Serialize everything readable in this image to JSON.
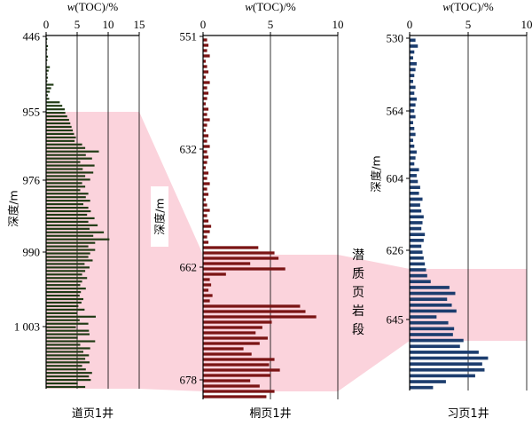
{
  "chart_data": [
    {
      "type": "bar",
      "orientation": "horizontal",
      "well_name": "道页1井",
      "xlabel_prefix": "w",
      "xlabel_suffix": "(TOC)/%",
      "ylabel": "深度/m",
      "x_ticks": [
        0,
        5,
        10,
        15
      ],
      "xlim": [
        0,
        15
      ],
      "y_ticks": [
        "446",
        "955",
        "976",
        "990",
        "1 003"
      ],
      "y_tick_values": [
        446,
        955,
        976,
        990,
        1003
      ],
      "bar_color": "#1f3a14",
      "series": [
        {
          "values": [
            0.2,
            0.1,
            0.3,
            0.2,
            0.1,
            0.3,
            0.2,
            0.1,
            0.6,
            0.4,
            0.2,
            0.3,
            0.2,
            1.2,
            0.8,
            0.6,
            0.3,
            0.5,
            2.2,
            2.6,
            3.0,
            3.1,
            3.4,
            3.7,
            3.9,
            4.1,
            4.3,
            4.5,
            4.8,
            4.6,
            5.8,
            6.3,
            8.5,
            6.4,
            7.4,
            5.5,
            7.8,
            5.9,
            7.6,
            6.3,
            7.1,
            5.8,
            6.3,
            5.5,
            6.8,
            6.4,
            7.1,
            6.0,
            6.8,
            7.2,
            6.6,
            7.8,
            6.8,
            8.3,
            7.0,
            9.3,
            7.6,
            10.2,
            7.9,
            6.8,
            7.9,
            7.1,
            6.8,
            7.5,
            6.2,
            7.0,
            6.3,
            5.8,
            6.6,
            5.8,
            5.5,
            6.4,
            5.6,
            5.4,
            6.0,
            5.7,
            5.2,
            6.2,
            5.0,
            8.0,
            5.4,
            6.8,
            4.8,
            6.9,
            7.0,
            5.1,
            7.9,
            5.5,
            7.1,
            6.0,
            6.9,
            6.3,
            7.0,
            5.8,
            6.4,
            7.4,
            6.9,
            7.2,
            5.1,
            6.3
          ]
        }
      ]
    },
    {
      "type": "bar",
      "orientation": "horizontal",
      "well_name": "桐页1井",
      "xlabel_prefix": "w",
      "xlabel_suffix": "(TOC)/%",
      "ylabel": "深度/m",
      "x_ticks": [
        0,
        5,
        10
      ],
      "xlim": [
        0,
        10
      ],
      "y_ticks": [
        "551",
        "632",
        "662",
        "678"
      ],
      "y_tick_values": [
        551,
        632,
        662,
        678
      ],
      "bar_color": "#7a1414",
      "series": [
        {
          "values": [
            0.3,
            0.4,
            0.3,
            0.5,
            0.2,
            0.3,
            0.4,
            0.2,
            0.5,
            0.3,
            0.4,
            0.3,
            0.2,
            0.4,
            0.3,
            0.5,
            0.3,
            0.2,
            0.4,
            0.3,
            0.5,
            0.3,
            0.4,
            0.3,
            0.2,
            0.4,
            0.3,
            0.5,
            0.3,
            0.4,
            0.2,
            0.3,
            0.5,
            0.3,
            0.4,
            0.6,
            0.5,
            0.3,
            0.4,
            4.1,
            5.3,
            5.6,
            3.5,
            6.1,
            1.7,
            0.5,
            0.6,
            0.4,
            0.7,
            0.5,
            7.2,
            7.6,
            8.4,
            5.1,
            4.4,
            3.9,
            4.8,
            4.2,
            3.0,
            3.6,
            5.3,
            4.9,
            5.7,
            5.0,
            3.5,
            4.2,
            5.3,
            4.7
          ]
        }
      ]
    },
    {
      "type": "bar",
      "orientation": "horizontal",
      "well_name": "习页1井",
      "xlabel_prefix": "w",
      "xlabel_suffix": "(TOC)/%",
      "ylabel": "深度/m",
      "x_ticks": [
        0,
        5,
        10
      ],
      "xlim": [
        0,
        10
      ],
      "y_ticks": [
        "530",
        "564",
        "604",
        "626",
        "645"
      ],
      "y_tick_values": [
        530,
        564,
        604,
        626,
        645
      ],
      "bar_color": "#1c3d6e",
      "series": [
        {
          "values": [
            0.5,
            0.7,
            0.4,
            0.3,
            0.6,
            0.5,
            0.4,
            0.3,
            0.5,
            0.4,
            0.6,
            0.5,
            0.4,
            0.5,
            0.3,
            0.4,
            0.5,
            0.3,
            0.4,
            0.6,
            0.5,
            0.4,
            0.8,
            0.6,
            0.7,
            0.9,
            0.8,
            1.1,
            0.9,
            1.0,
            1.2,
            1.1,
            1.0,
            1.3,
            1.2,
            1.0,
            1.1,
            1.2,
            1.3,
            1.4,
            1.5,
            1.8,
            3.4,
            3.9,
            3.2,
            3.6,
            4.0,
            2.3,
            3.3,
            3.8,
            3.7,
            4.6,
            4.3,
            5.9,
            6.7,
            6.2,
            6.4,
            5.6,
            3.1,
            2.0
          ]
        }
      ]
    }
  ],
  "zone_label": [
    "潜",
    "质",
    "页",
    "岩",
    "段"
  ],
  "colors": {
    "highlight": "#fbd3dc",
    "axis": "#000000"
  }
}
